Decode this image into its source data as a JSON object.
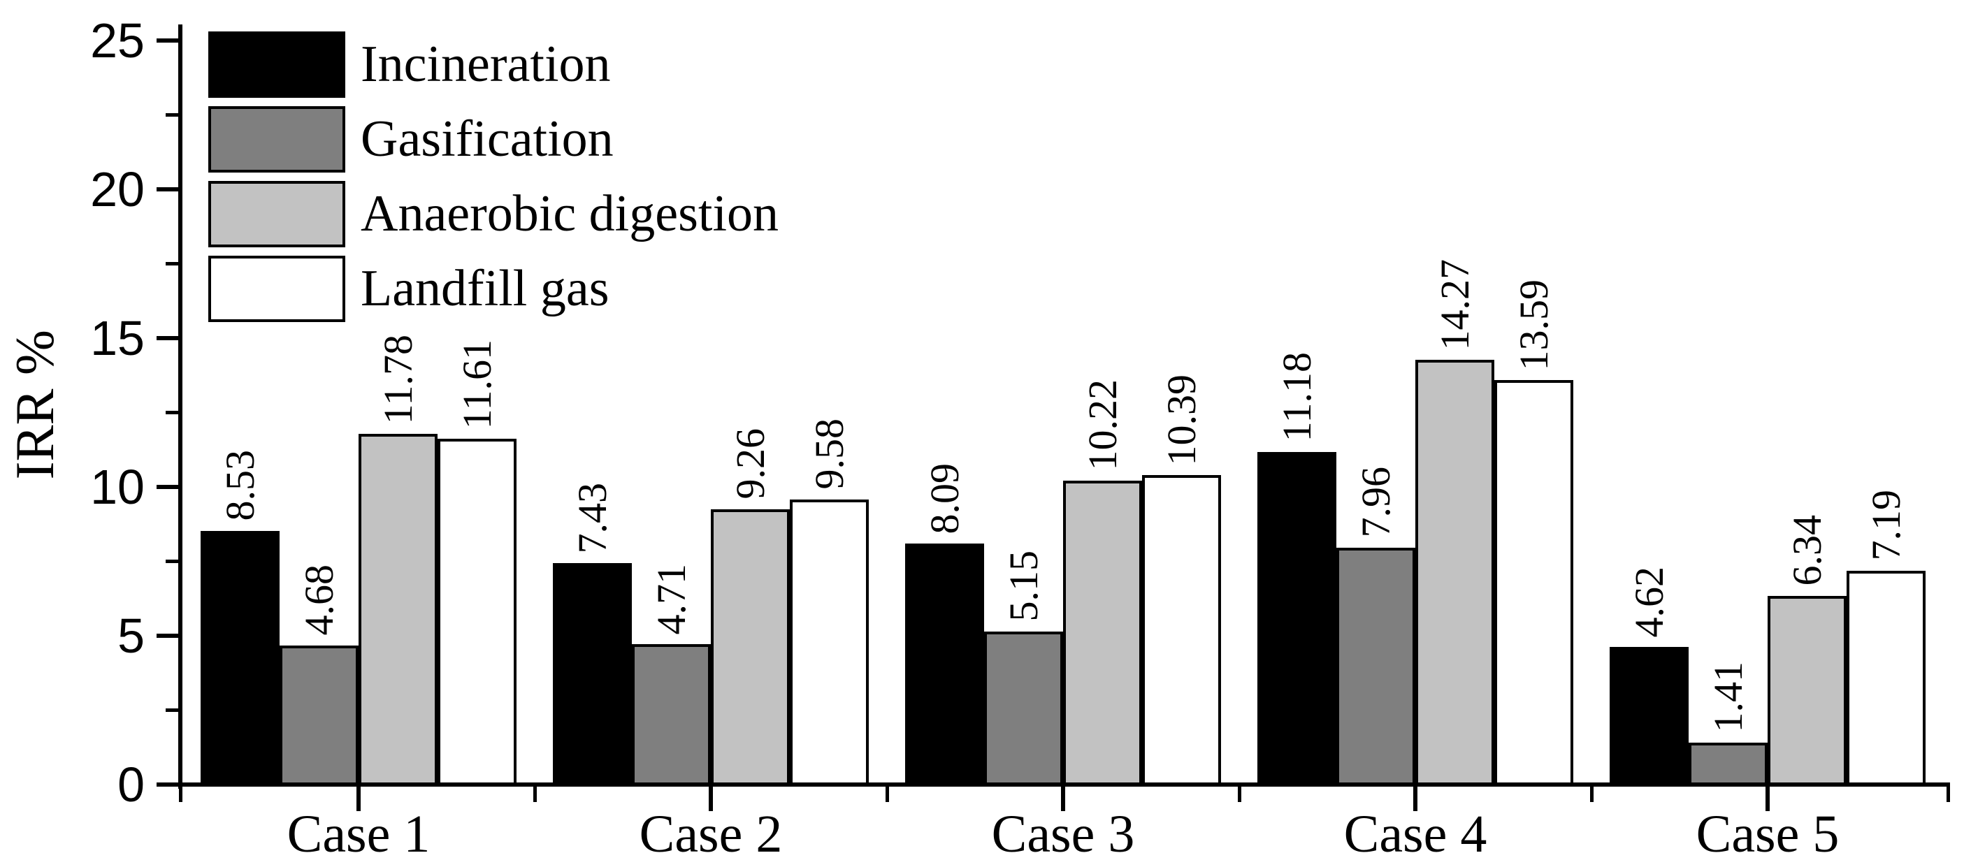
{
  "chart_data": {
    "type": "bar",
    "title": "",
    "ylabel": "IRR %",
    "xlabel": "",
    "categories": [
      "Case 1",
      "Case 2",
      "Case 3",
      "Case 4",
      "Case 5"
    ],
    "series": [
      {
        "name": "Incineration",
        "color": "#000000",
        "values": [
          8.53,
          7.43,
          8.09,
          11.18,
          4.62
        ]
      },
      {
        "name": "Gasification",
        "color": "#7f7f7f",
        "values": [
          4.68,
          4.71,
          5.15,
          7.96,
          1.41
        ]
      },
      {
        "name": "Anaerobic digestion",
        "color": "#c2c2c2",
        "values": [
          11.78,
          9.26,
          10.22,
          14.27,
          6.34
        ]
      },
      {
        "name": "Landfill gas",
        "color": "#ffffff",
        "values": [
          11.61,
          9.58,
          10.39,
          13.59,
          7.19
        ]
      }
    ],
    "ylim": [
      0,
      25
    ],
    "y_major_ticks": [
      0,
      5,
      10,
      15,
      20,
      25
    ],
    "y_tick_labels": [
      "0",
      "5",
      "10",
      "15",
      "20",
      "25"
    ],
    "y_minor_tick_step": 2.5,
    "bar_outline_color": "#000000",
    "value_label_decimals": 2,
    "value_labels_rotated": true,
    "legend_position": "top-left-inside",
    "grid": false,
    "background": "#ffffff"
  }
}
